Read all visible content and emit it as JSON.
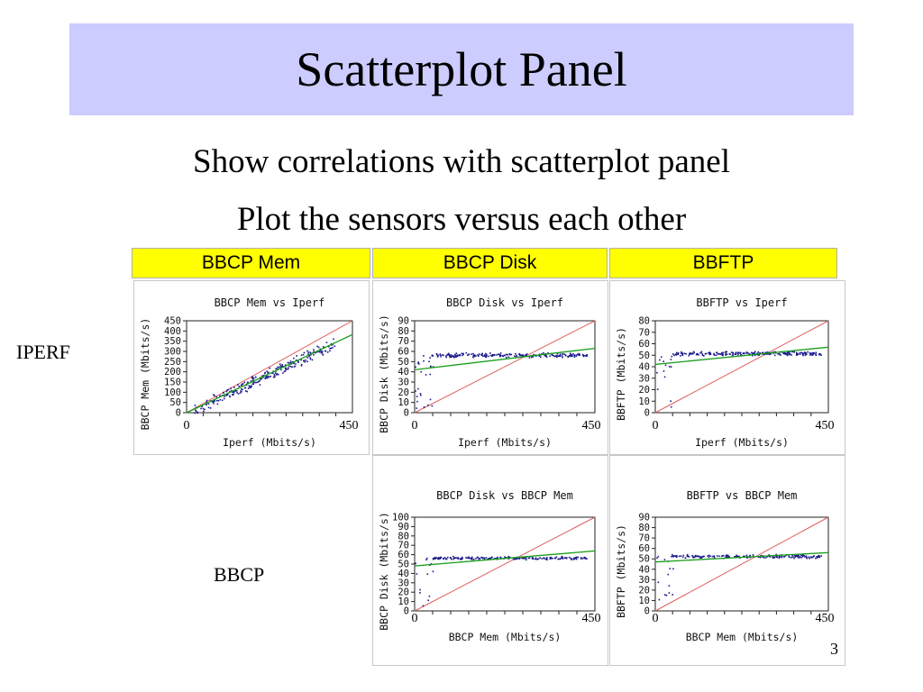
{
  "slide": {
    "title": "Scatterplot Panel",
    "subtitle_1": "Show correlations with scatterplot panel",
    "subtitle_2": "Plot the sensors versus each other",
    "row_labels": [
      "IPERF",
      "BBCP"
    ],
    "column_headers": [
      "BBCP Mem",
      "BBCP Disk",
      "BBFTP"
    ],
    "page_number": "3"
  },
  "colors": {
    "title_bg": "#ccccff",
    "header_bg": "#ffff00",
    "points": "#1a1a8c",
    "fit_line": "#1a9e1a",
    "diagonal": "#e06060"
  },
  "chart_data": [
    {
      "type": "scatter",
      "title": "BBCP Mem vs Iperf",
      "xlabel": "Iperf (Mbits/s)",
      "ylabel": "BBCP Mem (Mbits/s)",
      "xlim": [
        0,
        450
      ],
      "ylim": [
        0,
        450
      ],
      "x_ticks": [
        "0",
        "450"
      ],
      "y_ticks": [
        "450",
        "400",
        "350",
        "300",
        "250",
        "200",
        "150",
        "100",
        "50",
        "0"
      ],
      "grid": false
    },
    {
      "type": "scatter",
      "title": "BBCP Disk vs Iperf",
      "xlabel": "Iperf (Mbits/s)",
      "ylabel": "BBCP Disk (Mbits/s)",
      "xlim": [
        0,
        450
      ],
      "ylim": [
        0,
        90
      ],
      "x_ticks": [
        "0",
        "450"
      ],
      "y_ticks": [
        "90",
        "80",
        "70",
        "60",
        "50",
        "40",
        "30",
        "20",
        "10",
        "0"
      ],
      "grid": false
    },
    {
      "type": "scatter",
      "title": "BBFTP vs Iperf",
      "xlabel": "Iperf (Mbits/s)",
      "ylabel": "BBFTP (Mbits/s)",
      "xlim": [
        0,
        450
      ],
      "ylim": [
        0,
        80
      ],
      "x_ticks": [
        "0",
        "450"
      ],
      "y_ticks": [
        "80",
        "70",
        "60",
        "50",
        "40",
        "30",
        "20",
        "10",
        "0"
      ],
      "grid": false
    },
    {
      "type": "scatter",
      "title": "BBCP Disk vs BBCP Mem",
      "xlabel": "BBCP Mem (Mbits/s)",
      "ylabel": "BBCP Disk (Mbits/s)",
      "xlim": [
        0,
        450
      ],
      "ylim": [
        0,
        100
      ],
      "x_ticks": [
        "0",
        "450"
      ],
      "y_ticks": [
        "100",
        "90",
        "80",
        "70",
        "60",
        "50",
        "40",
        "30",
        "20",
        "10",
        "0"
      ],
      "grid": false
    },
    {
      "type": "scatter",
      "title": "BBFTP vs BBCP Mem",
      "xlabel": "BBCP Mem (Mbits/s)",
      "ylabel": "BBFTP (Mbits/s)",
      "xlim": [
        0,
        450
      ],
      "ylim": [
        0,
        90
      ],
      "x_ticks": [
        "0",
        "450"
      ],
      "y_ticks": [
        "90",
        "80",
        "70",
        "60",
        "50",
        "40",
        "30",
        "20",
        "10",
        "0"
      ],
      "grid": false
    }
  ]
}
